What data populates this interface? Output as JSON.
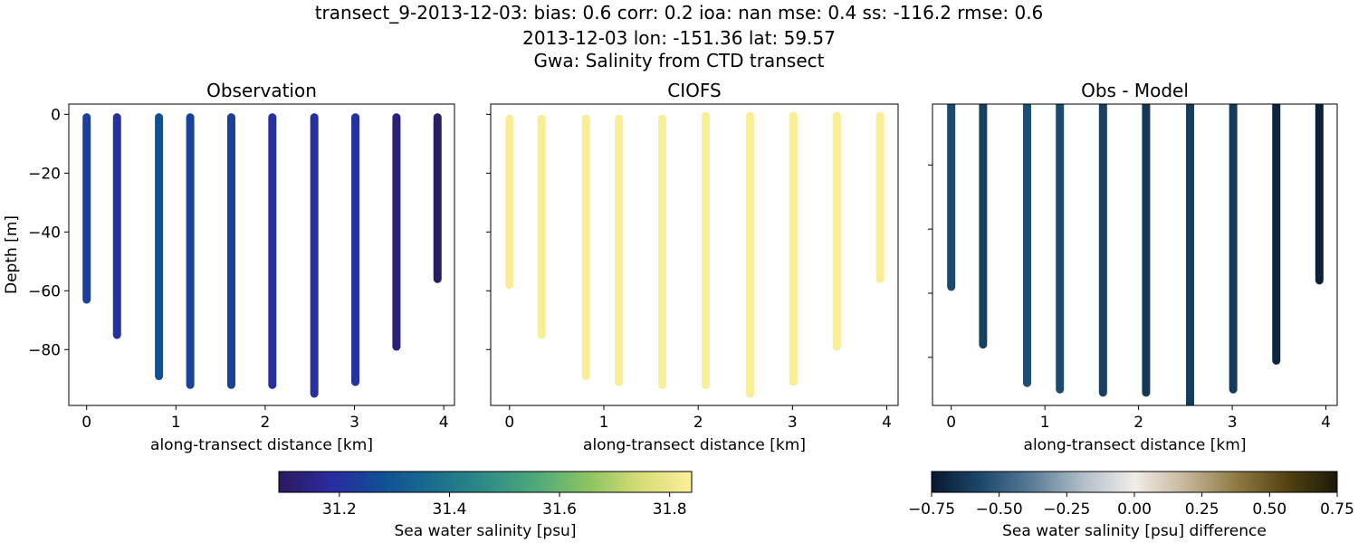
{
  "title_lines": [
    "transect_9-2013-12-03: bias: 0.6  corr: 0.2  ioa: nan  mse: 0.4  ss: -116.2  rmse: 0.6",
    "2013-12-03 lon: -151.36 lat: 59.57",
    "Gwa: Salinity from CTD transect"
  ],
  "chart_data": [
    {
      "type": "scatter",
      "title": "Observation",
      "xlabel": "along-transect distance [km]",
      "ylabel": "Depth [m]",
      "xlim": [
        -0.2,
        4.12
      ],
      "ylim": [
        -99,
        3.5
      ],
      "xticks": [
        "0",
        "1",
        "2",
        "3",
        "4"
      ],
      "yticks": [
        "0",
        "−20",
        "−40",
        "−60",
        "−80"
      ],
      "colorbar": "salinity",
      "casts": [
        {
          "x": 0,
          "top": -1,
          "bottom": -63,
          "value": 31.24
        },
        {
          "x": 0.34,
          "top": -1,
          "bottom": -75,
          "value": 31.2
        },
        {
          "x": 0.81,
          "top": -1,
          "bottom": -89,
          "value": 31.28
        },
        {
          "x": 1.16,
          "top": -1,
          "bottom": -92,
          "value": 31.25
        },
        {
          "x": 1.62,
          "top": -1,
          "bottom": -92,
          "value": 31.24
        },
        {
          "x": 2.08,
          "top": -1,
          "bottom": -92,
          "value": 31.2
        },
        {
          "x": 2.55,
          "top": -1,
          "bottom": -95,
          "value": 31.2
        },
        {
          "x": 3.01,
          "top": -1,
          "bottom": -91,
          "value": 31.2
        },
        {
          "x": 3.47,
          "top": -1,
          "bottom": -79,
          "value": 31.13
        },
        {
          "x": 3.93,
          "top": -1,
          "bottom": -56,
          "value": 31.1
        }
      ]
    },
    {
      "type": "scatter",
      "title": "CIOFS",
      "xlabel": "along-transect distance [km]",
      "xlim": [
        -0.2,
        4.12
      ],
      "ylim": [
        -99,
        3.5
      ],
      "xticks": [
        "0",
        "1",
        "2",
        "3",
        "4"
      ],
      "colorbar": "salinity",
      "casts": [
        {
          "x": 0,
          "top": -1.5,
          "bottom": -58,
          "value": 31.83
        },
        {
          "x": 0.34,
          "top": -1.5,
          "bottom": -75,
          "value": 31.83
        },
        {
          "x": 0.81,
          "top": -1.5,
          "bottom": -89,
          "value": 31.83
        },
        {
          "x": 1.16,
          "top": -1.5,
          "bottom": -91,
          "value": 31.83
        },
        {
          "x": 1.62,
          "top": -1.5,
          "bottom": -92,
          "value": 31.83
        },
        {
          "x": 2.08,
          "top": -0.5,
          "bottom": -92,
          "value": 31.83
        },
        {
          "x": 2.55,
          "top": -0.5,
          "bottom": -95,
          "value": 31.83
        },
        {
          "x": 3.01,
          "top": -0.5,
          "bottom": -91,
          "value": 31.83
        },
        {
          "x": 3.47,
          "top": -0.5,
          "bottom": -79,
          "value": 31.83
        },
        {
          "x": 3.93,
          "top": -0.5,
          "bottom": -56,
          "value": 31.83
        }
      ]
    },
    {
      "type": "scatter",
      "title": "Obs - Model",
      "xlabel": "along-transect distance [km]",
      "xlim": [
        -0.2,
        4.12
      ],
      "ylim": [
        -95,
        -1
      ],
      "xticks": [
        "0",
        "1",
        "2",
        "3",
        "4"
      ],
      "yticks_values": [
        -20,
        -40,
        -60,
        -80
      ],
      "colorbar": "difference",
      "casts": [
        {
          "x": 0,
          "top": -0.5,
          "bottom": -58,
          "value": -0.57
        },
        {
          "x": 0.34,
          "top": -0.5,
          "bottom": -76,
          "value": -0.6
        },
        {
          "x": 0.81,
          "top": -0.5,
          "bottom": -88,
          "value": -0.55
        },
        {
          "x": 1.16,
          "top": -0.5,
          "bottom": -90,
          "value": -0.56
        },
        {
          "x": 1.62,
          "top": -0.5,
          "bottom": -91,
          "value": -0.6
        },
        {
          "x": 2.08,
          "top": -0.5,
          "bottom": -91,
          "value": -0.63
        },
        {
          "x": 2.55,
          "top": -0.5,
          "bottom": -100,
          "value": -0.62
        },
        {
          "x": 3.01,
          "top": -0.5,
          "bottom": -90,
          "value": -0.62
        },
        {
          "x": 3.47,
          "top": -0.5,
          "bottom": -81,
          "value": -0.7
        },
        {
          "x": 3.93,
          "top": -0.5,
          "bottom": -56,
          "value": -0.72
        }
      ]
    }
  ],
  "colorbars": {
    "salinity": {
      "label": "Sea water salinity [psu]",
      "range": [
        31.09,
        31.84
      ],
      "ticks": [
        31.2,
        31.4,
        31.6,
        31.8
      ],
      "tick_labels": [
        "31.2",
        "31.4",
        "31.6",
        "31.8"
      ],
      "colors": [
        "#2a1a5e",
        "#2b2aa0",
        "#104f96",
        "#1a6e8c",
        "#2e8c87",
        "#4fa97b",
        "#8cc461",
        "#d6dc76",
        "#fdef9a"
      ]
    },
    "difference": {
      "label": "Sea water salinity [psu] difference",
      "range": [
        -0.75,
        0.75
      ],
      "ticks": [
        -0.75,
        -0.5,
        -0.25,
        0,
        0.25,
        0.5,
        0.75
      ],
      "tick_labels": [
        "−0.75",
        "−0.50",
        "−0.25",
        "0.00",
        "0.25",
        "0.50",
        "0.75"
      ],
      "colors": [
        "#08182f",
        "#1c4a6e",
        "#5c7d98",
        "#b3bfc9",
        "#f0ece8",
        "#c6b79b",
        "#8f7a45",
        "#544312",
        "#1b1a08"
      ]
    }
  }
}
